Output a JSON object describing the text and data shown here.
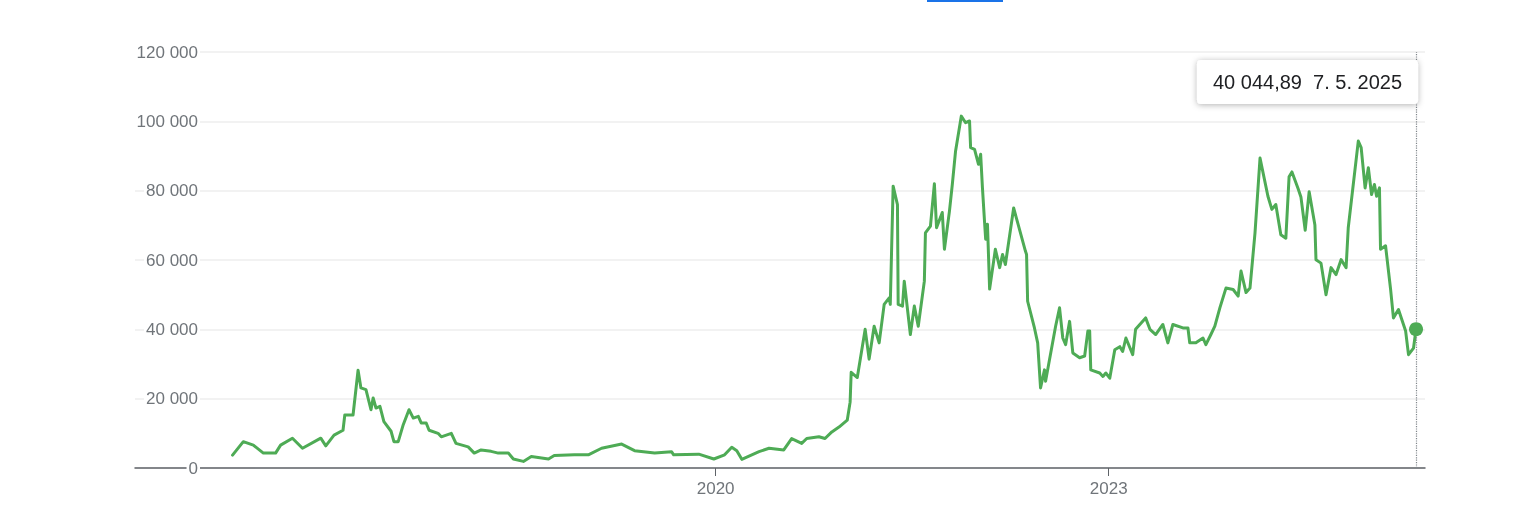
{
  "chart_data": {
    "type": "line",
    "x": [
      "2016-04-24",
      "2016-05-24",
      "2016-06-21",
      "2016-07-19",
      "2016-08-22",
      "2016-09-05",
      "2016-10-08",
      "2016-11-05",
      "2016-12-26",
      "2017-01-09",
      "2017-02-01",
      "2017-02-26",
      "2017-03-03",
      "2017-03-26",
      "2017-04-09",
      "2017-04-17",
      "2017-05-01",
      "2017-05-15",
      "2017-05-21",
      "2017-05-29",
      "2017-06-09",
      "2017-06-20",
      "2017-07-10",
      "2017-07-18",
      "2017-07-30",
      "2017-08-13",
      "2017-08-29",
      "2017-09-10",
      "2017-09-24",
      "2017-10-02",
      "2017-10-16",
      "2017-10-24",
      "2017-11-18",
      "2017-11-27",
      "2017-12-25",
      "2018-01-07",
      "2018-02-10",
      "2018-02-27",
      "2018-03-18",
      "2018-04-15",
      "2018-05-05",
      "2018-06-02",
      "2018-06-16",
      "2018-07-14",
      "2018-08-05",
      "2018-09-22",
      "2018-10-08",
      "2018-12-03",
      "2019-01-11",
      "2019-02-17",
      "2019-04-14",
      "2019-05-20",
      "2019-07-15",
      "2019-08-31",
      "2019-09-06",
      "2019-11-15",
      "2019-12-27",
      "2020-01-26",
      "2020-02-15",
      "2020-02-29",
      "2020-03-14",
      "2020-05-01",
      "2020-05-29",
      "2020-07-09",
      "2020-07-31",
      "2020-08-28",
      "2020-09-11",
      "2020-10-15",
      "2020-11-01",
      "2020-11-20",
      "2020-12-10",
      "2021-01-02",
      "2021-01-10",
      "2021-01-13",
      "2021-01-30",
      "2021-02-21",
      "2021-03-04",
      "2021-03-18",
      "2021-04-01",
      "2021-04-15",
      "2021-04-29",
      "2021-05-02",
      "2021-05-10",
      "2021-05-22",
      "2021-05-24",
      "2021-06-05",
      "2021-06-10",
      "2021-06-27",
      "2021-07-08",
      "2021-07-19",
      "2021-08-05",
      "2021-08-08",
      "2021-08-22",
      "2021-09-02",
      "2021-09-08",
      "2021-09-24",
      "2021-09-30",
      "2021-10-14",
      "2021-10-22",
      "2021-10-31",
      "2021-11-16",
      "2021-11-28",
      "2021-12-09",
      "2021-12-12",
      "2021-12-23",
      "2022-01-03",
      "2022-01-09",
      "2022-01-14",
      "2022-01-20",
      "2022-01-23",
      "2022-01-28",
      "2022-02-03",
      "2022-02-19",
      "2022-03-03",
      "2022-03-11",
      "2022-03-19",
      "2022-04-11",
      "2022-05-14",
      "2022-05-17",
      "2022-05-20",
      "2022-06-08",
      "2022-06-17",
      "2022-06-25",
      "2022-07-06",
      "2022-07-09",
      "2022-08-06",
      "2022-08-17",
      "2022-08-26",
      "2022-09-03",
      "2022-09-14",
      "2022-09-23",
      "2022-10-12",
      "2022-10-26",
      "2022-11-04",
      "2022-11-09",
      "2022-11-12",
      "2022-12-07",
      "2022-12-16",
      "2022-12-24",
      "2023-01-04",
      "2023-01-18",
      "2023-02-01",
      "2023-02-09",
      "2023-02-18",
      "2023-03-09",
      "2023-03-17",
      "2023-04-14",
      "2023-04-26",
      "2023-05-12",
      "2023-06-01",
      "2023-06-15",
      "2023-06-29",
      "2023-07-27",
      "2023-08-10",
      "2023-08-15",
      "2023-09-01",
      "2023-09-21",
      "2023-09-29",
      "2023-10-13",
      "2023-10-24",
      "2023-11-07",
      "2023-11-24",
      "2023-12-14",
      "2023-12-28",
      "2024-01-05",
      "2024-01-19",
      "2024-01-30",
      "2024-02-13",
      "2024-02-27",
      "2024-03-20",
      "2024-03-31",
      "2024-04-11",
      "2024-04-25",
      "2024-05-09",
      "2024-05-18",
      "2024-05-26",
      "2024-06-12",
      "2024-06-20",
      "2024-07-02",
      "2024-07-13",
      "2024-07-29",
      "2024-08-01",
      "2024-08-15",
      "2024-08-29",
      "2024-09-12",
      "2024-09-26",
      "2024-10-10",
      "2024-10-24",
      "2024-10-30",
      "2024-11-27",
      "2024-12-05",
      "2024-12-16",
      "2024-12-25",
      "2025-01-03",
      "2025-01-11",
      "2025-01-17",
      "2025-01-25",
      "2025-01-28",
      "2025-02-11",
      "2025-02-25",
      "2025-03-05",
      "2025-03-19",
      "2025-04-08",
      "2025-04-16",
      "2025-04-30",
      "2025-05-07"
    ],
    "series": [
      {
        "color": "#4eab55",
        "values": [
          3700,
          7600,
          6600,
          4300,
          4300,
          6600,
          8600,
          5700,
          8600,
          6400,
          9500,
          10900,
          15300,
          15300,
          28200,
          23100,
          22600,
          16800,
          20200,
          17300,
          17800,
          13400,
          10600,
          7600,
          7600,
          12500,
          16800,
          14400,
          14900,
          13000,
          13000,
          10900,
          10000,
          9000,
          10000,
          7100,
          6100,
          4300,
          5200,
          4800,
          4300,
          4300,
          2600,
          1900,
          3300,
          2600,
          3600,
          3800,
          3800,
          5700,
          6900,
          5000,
          4300,
          4700,
          3800,
          4000,
          2600,
          3800,
          6000,
          5000,
          2500,
          4700,
          5700,
          5200,
          8500,
          7100,
          8500,
          9000,
          8500,
          10400,
          11800,
          13800,
          19000,
          27600,
          26100,
          40000,
          31400,
          40900,
          36100,
          47200,
          49100,
          47200,
          81300,
          76000,
          47200,
          46700,
          53900,
          38500,
          46700,
          40900,
          53900,
          67800,
          69800,
          82000,
          69300,
          73700,
          63100,
          74100,
          81800,
          91400,
          101500,
          99600,
          100100,
          92400,
          91900,
          87600,
          90500,
          80800,
          70800,
          66000,
          70300,
          51600,
          63100,
          57800,
          61600,
          58700,
          75000,
          62500,
          61600,
          48100,
          40400,
          36100,
          23100,
          28300,
          25000,
          40900,
          46200,
          37500,
          35600,
          42300,
          33200,
          31800,
          32300,
          39500,
          39500,
          28300,
          27400,
          26400,
          27400,
          25900,
          34100,
          35000,
          33600,
          37500,
          32700,
          40000,
          43300,
          40000,
          38500,
          41400,
          36100,
          41400,
          40400,
          40400,
          36100,
          36100,
          37500,
          35600,
          38500,
          40900,
          46200,
          51900,
          51500,
          49600,
          56800,
          50600,
          51900,
          67800,
          89400,
          78400,
          74600,
          76000,
          67300,
          66300,
          84000,
          85400,
          80600,
          78200,
          68600,
          79700,
          70100,
          60100,
          59100,
          50000,
          57800,
          55800,
          60100,
          57800,
          69300,
          94300,
          92400,
          80800,
          86600,
          78900,
          81800,
          78400,
          80800,
          63100,
          64100,
          51600,
          43300,
          45700,
          39500,
          32700,
          34600,
          40044.89
        ]
      }
    ],
    "xlim": [
      "2015-07-27",
      "2025-06-01"
    ],
    "xticks": [
      "2020",
      "2023"
    ],
    "ylim": [
      0,
      120000
    ],
    "yticks": [
      0,
      {
        "value": 20000,
        "label": "20 000"
      },
      {
        "value": 40000,
        "label": "40 000"
      },
      {
        "value": 60000,
        "label": "60 000"
      },
      {
        "value": 80000,
        "label": "80 000"
      },
      {
        "value": 100000,
        "label": "100 000"
      },
      {
        "value": 120000,
        "label": "120 000"
      }
    ],
    "grid": "y",
    "marker": "none",
    "line_style": "solid",
    "ref_lines": [
      {
        "axis": "x",
        "value": "2025-05-07",
        "line_style": "dotted",
        "color": "#80868b",
        "label": "40 044,89  7. 5. 2025"
      }
    ]
  }
}
